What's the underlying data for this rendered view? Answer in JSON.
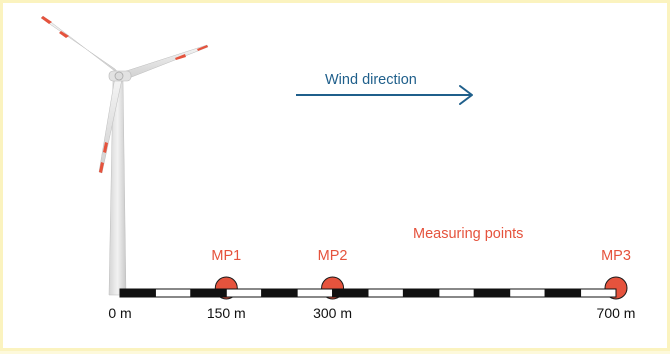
{
  "wind_label": "Wind direction",
  "measuring_label": "Measuring points",
  "measuring_points": [
    {
      "label": "MP1",
      "distance_m": 150
    },
    {
      "label": "MP2",
      "distance_m": 300
    },
    {
      "label": "MP3",
      "distance_m": 700
    }
  ],
  "scale": {
    "max_m": 700,
    "ticks": [
      {
        "label": "0 m",
        "value": 0
      },
      {
        "label": "150 m",
        "value": 150
      },
      {
        "label": "300 m",
        "value": 300
      },
      {
        "label": "700 m",
        "value": 700
      }
    ]
  },
  "colors": {
    "accent_red": "#e5533d",
    "wind_blue": "#1f5f8b",
    "background": "#ffffff",
    "frame": "#fbf3bf",
    "turbine": "#e6e6e6",
    "ruler": "#111111"
  }
}
